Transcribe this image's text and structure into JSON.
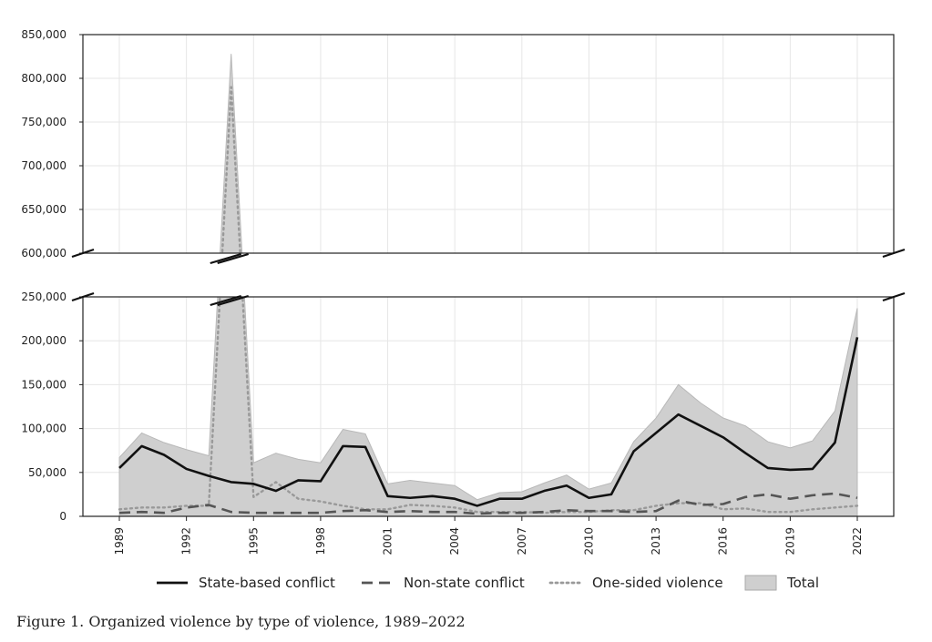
{
  "caption": "Figure 1. Organized violence by type of violence, 1989–2022",
  "chart_data": {
    "type": "line",
    "x": [
      1989,
      1990,
      1991,
      1992,
      1993,
      1994,
      1995,
      1996,
      1997,
      1998,
      1999,
      2000,
      2001,
      2002,
      2003,
      2004,
      2005,
      2006,
      2007,
      2008,
      2009,
      2010,
      2011,
      2012,
      2013,
      2014,
      2015,
      2016,
      2017,
      2018,
      2019,
      2020,
      2021,
      2022
    ],
    "x_tick_labels": [
      "1989",
      "1992",
      "1995",
      "1998",
      "2001",
      "2004",
      "2007",
      "2010",
      "2013",
      "2016",
      "2019",
      "2022"
    ],
    "y_tick_labels_upper": [
      "600,000",
      "650,000",
      "700,000",
      "750,000",
      "800,000",
      "850,000"
    ],
    "y_tick_labels_lower": [
      "0",
      "50,000",
      "100,000",
      "150,000",
      "200,000",
      "250,000"
    ],
    "ylim_lower": [
      0,
      250000
    ],
    "ylim_upper": [
      600000,
      850000
    ],
    "broken_axis": true,
    "grid": true,
    "legend_position": "bottom",
    "series": [
      {
        "name": "State-based conflict",
        "style": "solid",
        "color": "#111111",
        "values": [
          55000,
          80000,
          70000,
          54000,
          46000,
          39000,
          37000,
          29000,
          41000,
          40000,
          80000,
          79000,
          23000,
          21000,
          23000,
          20000,
          12000,
          20000,
          20000,
          29000,
          35000,
          21000,
          25000,
          74000,
          95000,
          116000,
          103000,
          90000,
          72000,
          55000,
          53000,
          54000,
          84000,
          204000
        ]
      },
      {
        "name": "Non-state conflict",
        "style": "dashed",
        "color": "#555555",
        "values": [
          4000,
          5000,
          4000,
          10000,
          13000,
          5000,
          4000,
          4000,
          4000,
          4000,
          6000,
          7000,
          5000,
          6000,
          5000,
          5000,
          3000,
          4000,
          4000,
          5000,
          7000,
          6000,
          6000,
          5000,
          6000,
          18000,
          13000,
          14000,
          22000,
          25000,
          20000,
          24000,
          26000,
          21000
        ]
      },
      {
        "name": "One-sided violence",
        "style": "dotted",
        "color": "#999999",
        "values": [
          8000,
          10000,
          10000,
          12000,
          12000,
          790000,
          22000,
          39000,
          20000,
          17000,
          12000,
          8000,
          8000,
          13000,
          12000,
          10000,
          5000,
          5000,
          5000,
          4000,
          5000,
          5000,
          7000,
          7000,
          12000,
          15000,
          15000,
          8000,
          9000,
          5000,
          5000,
          8000,
          10000,
          12000
        ]
      },
      {
        "name": "Total",
        "style": "area",
        "color": "#cfcfcf",
        "values": [
          67000,
          95000,
          84000,
          76000,
          69000,
          828000,
          61000,
          72000,
          65000,
          61000,
          99000,
          94000,
          37000,
          41000,
          38000,
          35000,
          19000,
          27000,
          28000,
          38000,
          47000,
          31000,
          38000,
          85000,
          112000,
          150000,
          129000,
          112000,
          103000,
          85000,
          78000,
          86000,
          120000,
          237000
        ]
      }
    ]
  }
}
